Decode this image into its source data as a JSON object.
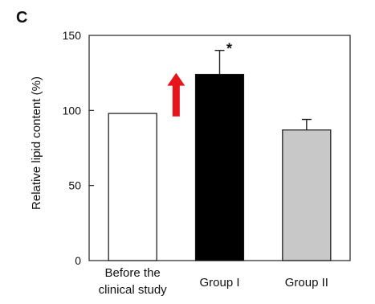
{
  "panel_label": "C",
  "chart_data": {
    "type": "bar",
    "categories": [
      [
        "Before the",
        "clinical study"
      ],
      [
        "Group I"
      ],
      [
        "Group II"
      ]
    ],
    "values": [
      98,
      124,
      87
    ],
    "errors": [
      0,
      16,
      7
    ],
    "colors": [
      "#ffffff",
      "#000000",
      "#c8c8c8"
    ],
    "annotation": {
      "category_index": 1,
      "text": "*"
    },
    "ylabel": "Relative lipid content (%)",
    "ylim": [
      0,
      150
    ],
    "yticks": [
      0,
      50,
      100,
      150
    ],
    "grid": false,
    "arrow": {
      "category_between": [
        0,
        1
      ],
      "from": 96,
      "to": 125,
      "color": "#e8141b"
    }
  }
}
